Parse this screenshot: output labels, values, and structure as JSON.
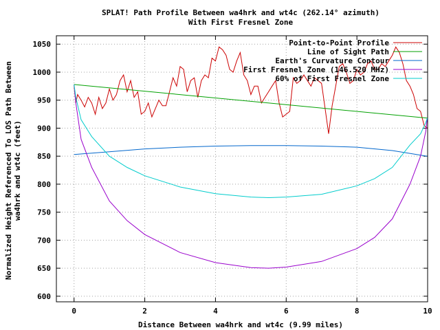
{
  "chart_data": {
    "type": "line",
    "title": "SPLAT! Path Profile Between wa4hrk and wt4c (262.14° azimuth)",
    "subtitle": "With First Fresnel Zone",
    "xlabel": "Distance Between wa4hrk and wt4c (9.99 miles)",
    "ylabel": "Normalized Height Referenced To LOS Path Between wa4hrk and wt4c (feet)",
    "ylabel_lines": [
      "Normalized Height Referenced To LOS Path Between",
      "wa4hrk and wt4c (feet)"
    ],
    "xlim": [
      -0.5,
      10
    ],
    "ylim": [
      590,
      1065
    ],
    "x_ticks": [
      0,
      2,
      4,
      6,
      8,
      10
    ],
    "x_tick_labels": [
      "0",
      "2",
      "4",
      "6",
      "8",
      "10"
    ],
    "y_ticks": [
      600,
      650,
      700,
      750,
      800,
      850,
      900,
      950,
      1000,
      1050
    ],
    "y_tick_labels": [
      "600",
      "650",
      "700",
      "750",
      "800",
      "850",
      "900",
      "950",
      "1000",
      "1050"
    ],
    "grid": true,
    "legend_position": "top-right",
    "series": [
      {
        "name": "Point-to-Point Profile",
        "color": "#cc0000",
        "x": [
          0,
          0.05,
          0.1,
          0.2,
          0.3,
          0.4,
          0.5,
          0.6,
          0.7,
          0.8,
          0.9,
          1.0,
          1.1,
          1.2,
          1.3,
          1.4,
          1.5,
          1.6,
          1.7,
          1.8,
          1.9,
          2.0,
          2.1,
          2.2,
          2.3,
          2.4,
          2.5,
          2.6,
          2.7,
          2.8,
          2.9,
          3.0,
          3.1,
          3.2,
          3.3,
          3.4,
          3.5,
          3.6,
          3.7,
          3.8,
          3.9,
          4.0,
          4.1,
          4.2,
          4.3,
          4.4,
          4.5,
          4.6,
          4.7,
          4.8,
          4.9,
          5.0,
          5.1,
          5.2,
          5.3,
          5.4,
          5.5,
          5.6,
          5.7,
          5.8,
          5.9,
          6.0,
          6.1,
          6.2,
          6.3,
          6.4,
          6.5,
          6.6,
          6.7,
          6.8,
          6.9,
          7.0,
          7.1,
          7.2,
          7.3,
          7.4,
          7.5,
          7.6,
          7.7,
          7.8,
          7.9,
          8.0,
          8.1,
          8.2,
          8.3,
          8.4,
          8.5,
          8.6,
          8.7,
          8.8,
          8.9,
          9.0,
          9.1,
          9.2,
          9.3,
          9.4,
          9.5,
          9.6,
          9.7,
          9.8,
          9.9,
          9.99
        ],
        "y": [
          975,
          945,
          960,
          950,
          938,
          955,
          945,
          925,
          955,
          935,
          945,
          970,
          950,
          960,
          985,
          995,
          965,
          985,
          955,
          965,
          925,
          930,
          945,
          920,
          935,
          950,
          940,
          940,
          965,
          990,
          975,
          1010,
          1005,
          965,
          985,
          990,
          955,
          985,
          995,
          990,
          1025,
          1020,
          1045,
          1040,
          1030,
          1005,
          1000,
          1020,
          1035,
          995,
          985,
          960,
          975,
          975,
          945,
          955,
          965,
          975,
          985,
          945,
          920,
          925,
          930,
          990,
          980,
          985,
          995,
          985,
          975,
          990,
          985,
          980,
          935,
          890,
          940,
          975,
          1010,
          1015,
          1000,
          980,
          985,
          1005,
          995,
          1000,
          1015,
          1020,
          1005,
          1005,
          1015,
          1010,
          1020,
          1030,
          1045,
          1035,
          1015,
          985,
          975,
          960,
          935,
          930,
          905,
          900
        ],
        "fresnel_notes": ""
      },
      {
        "name": "Line of Sight Path",
        "color": "#00a000",
        "x": [
          0,
          9.99
        ],
        "y": [
          978,
          918
        ]
      },
      {
        "name": "Earth's Curvature Contour",
        "color": "#0066cc",
        "x": [
          0,
          1,
          2,
          3,
          4,
          5,
          6,
          7,
          8,
          9,
          9.99
        ],
        "y": [
          853,
          858,
          863,
          866,
          868,
          869,
          869,
          868,
          866,
          860,
          850
        ]
      },
      {
        "name": "First Fresnel Zone (146.520 MHz)",
        "color": "#9900cc",
        "x": [
          0,
          0.05,
          0.2,
          0.5,
          1,
          1.5,
          2,
          3,
          4,
          5,
          5.5,
          6,
          7,
          8,
          8.5,
          9,
          9.5,
          9.8,
          9.95,
          9.99
        ],
        "y": [
          978,
          945,
          880,
          830,
          770,
          735,
          710,
          678,
          660,
          651,
          650,
          652,
          662,
          685,
          705,
          738,
          800,
          850,
          895,
          918
        ]
      },
      {
        "name": "60% of First Fresnel Zone",
        "color": "#00cccc",
        "x": [
          0,
          0.05,
          0.2,
          0.5,
          1,
          1.5,
          2,
          3,
          4,
          5,
          5.5,
          6,
          7,
          8,
          8.5,
          9,
          9.5,
          9.8,
          9.95,
          9.99
        ],
        "y": [
          978,
          955,
          915,
          885,
          850,
          830,
          815,
          795,
          783,
          777,
          776,
          777,
          782,
          797,
          810,
          830,
          870,
          890,
          910,
          918
        ]
      }
    ]
  }
}
